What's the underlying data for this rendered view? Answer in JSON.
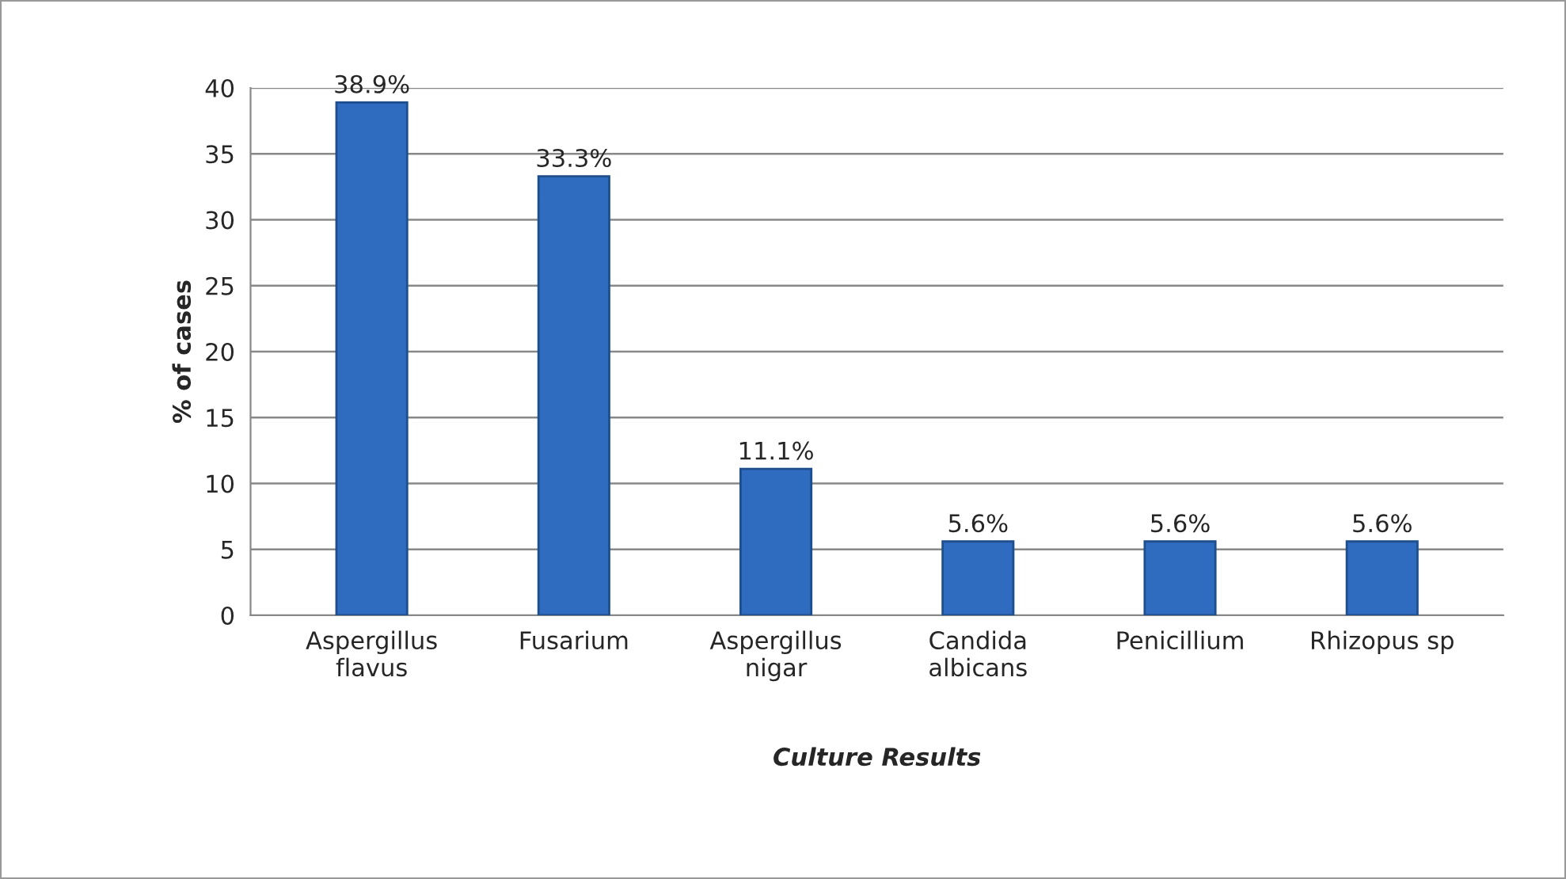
{
  "chart_data": {
    "type": "bar",
    "xlabel": "Culture Results",
    "ylabel": "% of cases",
    "categories": [
      "Aspergillus flavus",
      "Fusarium",
      "Aspergillus nigar",
      "Candida albicans",
      "Penicillium",
      "Rhizopus sp"
    ],
    "values": [
      38.9,
      33.3,
      11.1,
      5.6,
      5.6,
      5.6
    ],
    "value_labels": [
      "38.9%",
      "33.3%",
      "11.1%",
      "5.6%",
      "5.6%",
      "5.6%"
    ],
    "color": "#2f6cc0",
    "ylim": [
      0,
      40
    ],
    "yticks": [
      0,
      5,
      10,
      15,
      20,
      25,
      30,
      35,
      40
    ],
    "grid": "y",
    "legend": false
  }
}
